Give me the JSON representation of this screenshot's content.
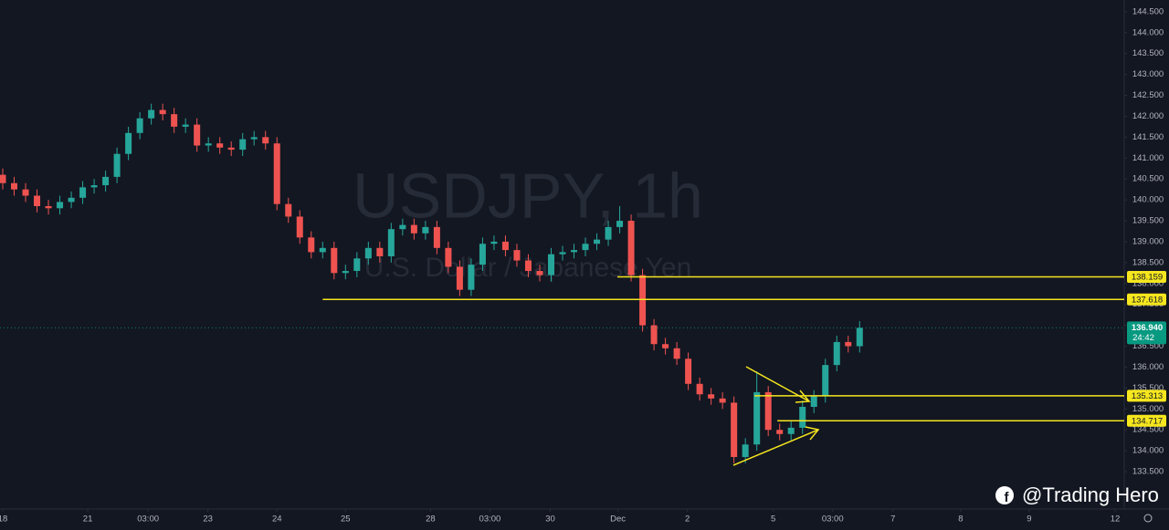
{
  "chart_data": {
    "type": "candlestick",
    "title": "USDJPY, 1h",
    "subtitle": "U.S. Dollar / Japanese Yen",
    "x": [
      0,
      1,
      2,
      3,
      4,
      5,
      6,
      7,
      8,
      9,
      10,
      11,
      12,
      13,
      14,
      15,
      16,
      17,
      18,
      19,
      20,
      21,
      22,
      23,
      24,
      25,
      26,
      27,
      28,
      29,
      30,
      31,
      32,
      33,
      34,
      35,
      36,
      37,
      38,
      39,
      40,
      41,
      42,
      43,
      44,
      45,
      46,
      47,
      48,
      49,
      50,
      51,
      52,
      53,
      54,
      55,
      56,
      57,
      58,
      59,
      60,
      61,
      62,
      63,
      64,
      65,
      66,
      67,
      68,
      69,
      70,
      71,
      72,
      73,
      74,
      75
    ],
    "open": [
      140.6,
      140.4,
      140.25,
      140.1,
      139.85,
      139.8,
      139.95,
      140.05,
      140.3,
      140.35,
      140.55,
      141.1,
      141.6,
      141.95,
      142.15,
      142.05,
      141.75,
      141.8,
      141.3,
      141.35,
      141.25,
      141.2,
      141.45,
      141.5,
      141.35,
      139.9,
      139.6,
      139.1,
      138.75,
      138.85,
      138.25,
      138.3,
      138.6,
      138.85,
      138.65,
      139.3,
      139.4,
      139.2,
      139.35,
      138.85,
      138.4,
      137.85,
      138.45,
      138.95,
      139.0,
      138.8,
      138.55,
      138.3,
      138.2,
      138.7,
      138.75,
      138.8,
      138.95,
      139.05,
      139.35,
      139.5,
      138.2,
      137.0,
      136.55,
      136.45,
      136.2,
      135.6,
      135.35,
      135.25,
      135.15,
      133.85,
      134.15,
      135.4,
      134.5,
      134.4,
      134.55,
      135.05,
      135.3,
      136.05,
      136.6,
      136.5
    ],
    "high": [
      140.75,
      140.55,
      140.4,
      140.25,
      140.0,
      140.1,
      140.2,
      140.45,
      140.5,
      140.7,
      141.25,
      141.75,
      142.1,
      142.3,
      142.3,
      142.2,
      141.95,
      141.95,
      141.5,
      141.5,
      141.4,
      141.6,
      141.65,
      141.65,
      141.5,
      140.05,
      139.75,
      139.25,
      139.0,
      139.0,
      138.45,
      138.75,
      139.0,
      139.0,
      139.45,
      139.55,
      139.55,
      139.5,
      139.5,
      139.0,
      138.55,
      138.6,
      139.1,
      139.15,
      139.15,
      138.95,
      138.7,
      138.45,
      138.85,
      138.9,
      138.95,
      139.1,
      139.2,
      139.5,
      139.85,
      139.65,
      138.35,
      137.15,
      136.7,
      136.6,
      136.35,
      135.75,
      135.5,
      135.4,
      135.3,
      134.3,
      135.9,
      135.55,
      134.65,
      134.7,
      135.2,
      135.45,
      136.2,
      136.75,
      136.75,
      137.1
    ],
    "low": [
      140.25,
      140.1,
      139.95,
      139.7,
      139.65,
      139.65,
      139.8,
      139.9,
      140.15,
      140.2,
      140.4,
      140.95,
      141.45,
      141.8,
      141.9,
      141.6,
      141.6,
      141.15,
      141.15,
      141.1,
      141.05,
      141.05,
      141.3,
      141.2,
      139.75,
      139.45,
      138.95,
      138.6,
      138.6,
      138.1,
      138.1,
      138.15,
      138.45,
      138.5,
      138.5,
      139.15,
      139.05,
      139.05,
      138.7,
      138.25,
      137.7,
      137.7,
      138.3,
      138.8,
      138.65,
      138.4,
      138.15,
      138.05,
      138.05,
      138.55,
      138.6,
      138.65,
      138.8,
      138.9,
      139.2,
      138.05,
      136.85,
      136.4,
      136.3,
      136.05,
      135.45,
      135.2,
      135.1,
      135.0,
      133.7,
      133.7,
      134.0,
      134.35,
      134.25,
      134.25,
      134.4,
      134.9,
      135.15,
      135.9,
      136.35,
      136.35
    ],
    "close": [
      140.4,
      140.25,
      140.1,
      139.85,
      139.8,
      139.95,
      140.05,
      140.3,
      140.35,
      140.55,
      141.1,
      141.6,
      141.95,
      142.15,
      142.05,
      141.75,
      141.8,
      141.3,
      141.35,
      141.25,
      141.2,
      141.45,
      141.5,
      141.35,
      139.9,
      139.6,
      139.1,
      138.75,
      138.85,
      138.25,
      138.3,
      138.6,
      138.85,
      138.65,
      139.3,
      139.4,
      139.2,
      139.35,
      138.85,
      138.4,
      137.85,
      138.45,
      138.95,
      139.0,
      138.8,
      138.55,
      138.3,
      138.2,
      138.7,
      138.75,
      138.8,
      138.95,
      139.05,
      139.35,
      139.5,
      138.2,
      137.0,
      136.55,
      136.45,
      136.2,
      135.6,
      135.35,
      135.25,
      135.15,
      133.85,
      134.15,
      135.4,
      134.5,
      134.4,
      134.55,
      135.05,
      135.3,
      136.05,
      136.6,
      136.5,
      136.94
    ],
    "up_color": "#26a69a",
    "down_color": "#ef5350",
    "level_color": "#f5e61e",
    "price_color": "#089981",
    "xlim": [
      -0.24,
      98.16
    ],
    "xticks": [
      {
        "value": 0,
        "label": "18"
      },
      {
        "value": 7.44,
        "label": "21"
      },
      {
        "value": 12.72,
        "label": "03:00"
      },
      {
        "value": 17.96,
        "label": "23"
      },
      {
        "value": 24,
        "label": "24"
      },
      {
        "value": 30,
        "label": "25"
      },
      {
        "value": 37.44,
        "label": "28"
      },
      {
        "value": 42.64,
        "label": "03:00"
      },
      {
        "value": 47.92,
        "label": "30"
      },
      {
        "value": 53.84,
        "label": "Dec"
      },
      {
        "value": 59.92,
        "label": "2"
      },
      {
        "value": 67.44,
        "label": "5"
      },
      {
        "value": 72.64,
        "label": "03:00"
      },
      {
        "value": 77.92,
        "label": "7"
      },
      {
        "value": 83.84,
        "label": "8"
      },
      {
        "value": 89.84,
        "label": "9"
      },
      {
        "value": 97.36,
        "label": "12"
      }
    ],
    "ylim": [
      132.65,
      144.78
    ],
    "yticks": [
      {
        "value": 133.5,
        "label": "133.500"
      },
      {
        "value": 134,
        "label": "134.000"
      },
      {
        "value": 134.5,
        "label": "134.500"
      },
      {
        "value": 135,
        "label": "135.000"
      },
      {
        "value": 135.5,
        "label": "135.500"
      },
      {
        "value": 136,
        "label": "136.000"
      },
      {
        "value": 136.5,
        "label": "136.500"
      },
      {
        "value": 137,
        "label": "137.000"
      },
      {
        "value": 137.5,
        "label": "137.500"
      },
      {
        "value": 138,
        "label": "138.000"
      },
      {
        "value": 138.5,
        "label": "138.500"
      },
      {
        "value": 139,
        "label": "139.000"
      },
      {
        "value": 139.5,
        "label": "139.500"
      },
      {
        "value": 140,
        "label": "140.000"
      },
      {
        "value": 140.5,
        "label": "140.500"
      },
      {
        "value": 141,
        "label": "141.000"
      },
      {
        "value": 141.5,
        "label": "141.500"
      },
      {
        "value": 142,
        "label": "142.000"
      },
      {
        "value": 142.5,
        "label": "142.500"
      },
      {
        "value": 143,
        "label": "143.000"
      },
      {
        "value": 143.5,
        "label": "143.500"
      },
      {
        "value": 144,
        "label": "144.000"
      },
      {
        "value": 144.5,
        "label": "144.500"
      }
    ],
    "levels": [
      {
        "value": 138.159,
        "start": 53.8
      },
      {
        "value": 137.618,
        "start": 28
      },
      {
        "value": 135.313,
        "start": 65.8
      },
      {
        "value": 134.717,
        "start": 67.8
      }
    ],
    "last_price": {
      "value": 136.94,
      "label": "136.940"
    },
    "countdown": "24:42"
  },
  "footer": "@Trading Hero"
}
